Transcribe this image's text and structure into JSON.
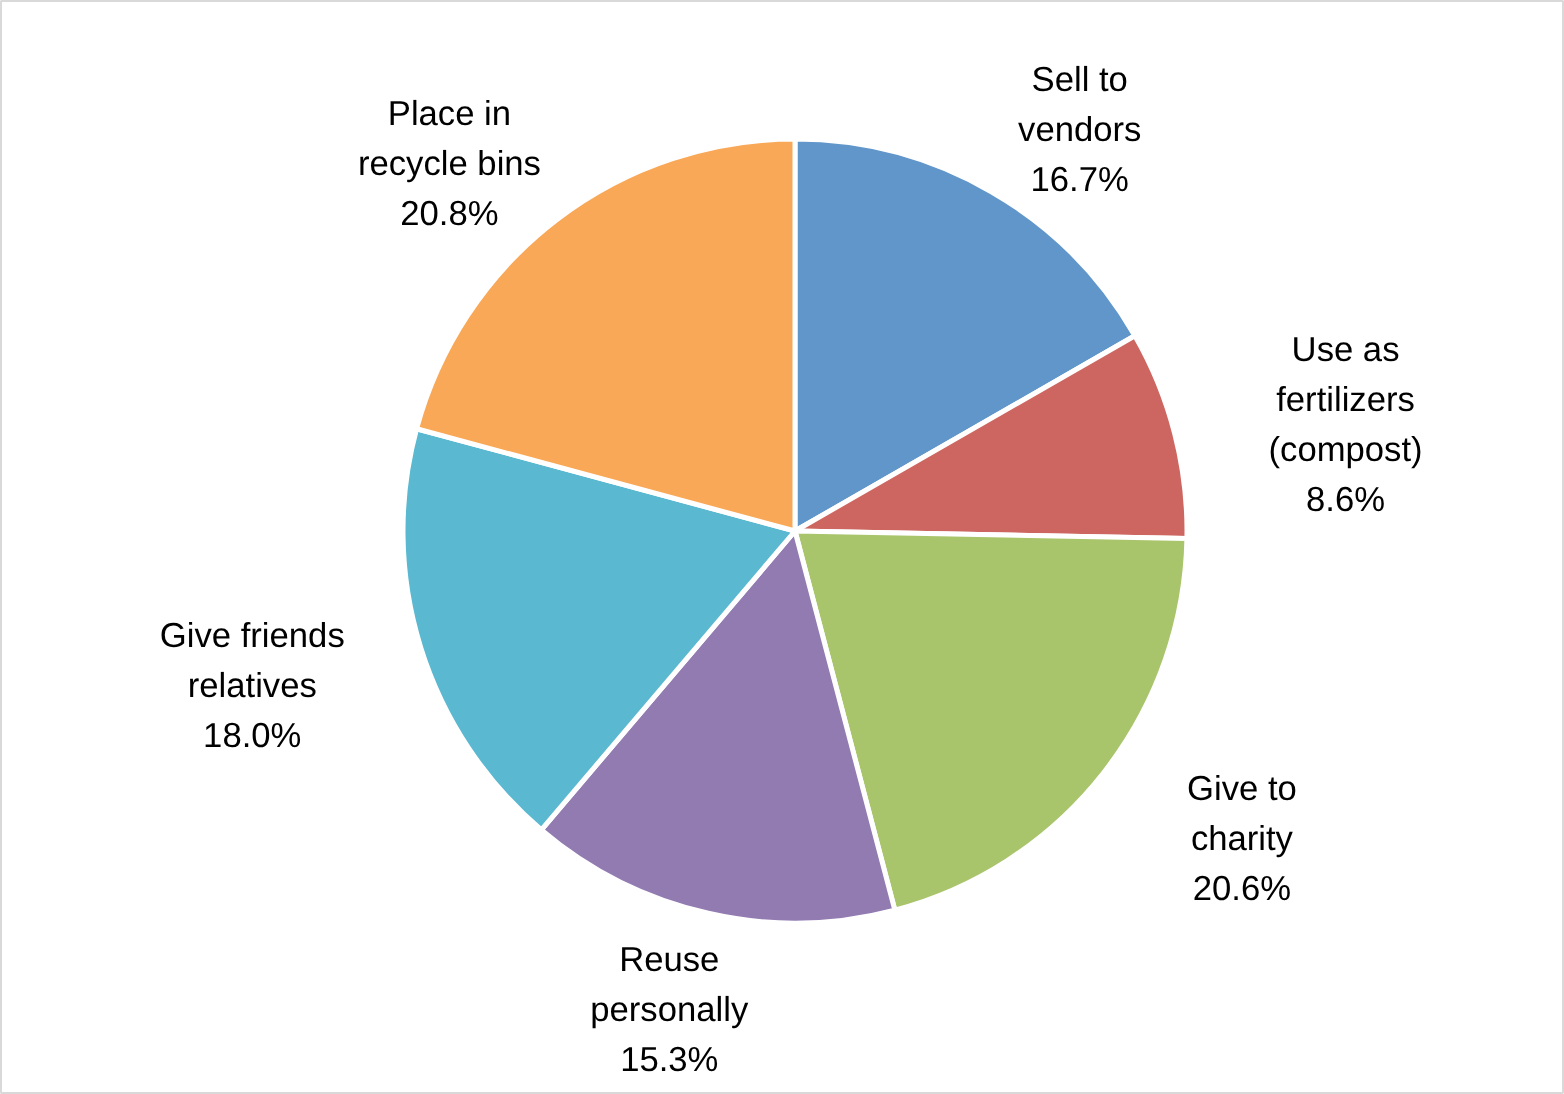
{
  "chart_data": {
    "type": "pie",
    "categories": [
      "Sell to\nvendors",
      "Use as\nfertilizers\n(compost)",
      "Give to\ncharity",
      "Reuse\npersonally",
      "Give friends\nrelatives",
      "Place in\nrecycle bins"
    ],
    "values": [
      16.7,
      8.6,
      20.6,
      15.3,
      18.0,
      20.8
    ],
    "value_labels": [
      "16.7%",
      "8.6%",
      "20.6%",
      "15.3%",
      "18.0%",
      "20.8%"
    ],
    "colors": [
      "#6096c9",
      "#cd6660",
      "#a9c56b",
      "#917bb1",
      "#5ab8d0",
      "#f8a857"
    ]
  }
}
